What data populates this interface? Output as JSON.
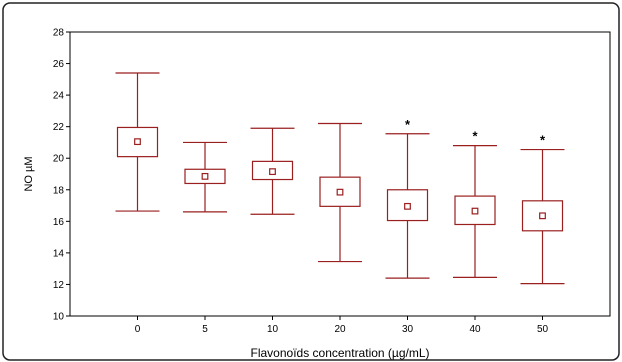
{
  "chart_data": {
    "type": "boxplot",
    "xlabel": "Flavonoïds concentration (µg/mL)",
    "ylabel": "NO µM",
    "ylim": [
      10,
      28
    ],
    "yticks": [
      10,
      12,
      14,
      16,
      18,
      20,
      22,
      24,
      26,
      28
    ],
    "categories": [
      "0",
      "5",
      "10",
      "20",
      "30",
      "40",
      "50"
    ],
    "boxes": [
      {
        "whisker_low": 16.65,
        "q1": 20.1,
        "median": 21.05,
        "q3": 21.95,
        "whisker_high": 25.4,
        "significant": false
      },
      {
        "whisker_low": 16.6,
        "q1": 18.4,
        "median": 18.85,
        "q3": 19.3,
        "whisker_high": 21.0,
        "significant": false
      },
      {
        "whisker_low": 16.45,
        "q1": 18.65,
        "median": 19.15,
        "q3": 19.8,
        "whisker_high": 21.9,
        "significant": false
      },
      {
        "whisker_low": 13.45,
        "q1": 16.95,
        "median": 17.85,
        "q3": 18.8,
        "whisker_high": 22.2,
        "significant": false
      },
      {
        "whisker_low": 12.4,
        "q1": 16.05,
        "median": 16.95,
        "q3": 18.0,
        "whisker_high": 21.55,
        "significant": true
      },
      {
        "whisker_low": 12.45,
        "q1": 15.8,
        "median": 16.65,
        "q3": 17.6,
        "whisker_high": 20.8,
        "significant": true
      },
      {
        "whisker_low": 12.05,
        "q1": 15.4,
        "median": 16.35,
        "q3": 17.3,
        "whisker_high": 20.55,
        "significant": true
      }
    ],
    "significance_marker": "*",
    "box_color": "#9a1f1f",
    "grid": false,
    "legend": "none"
  }
}
